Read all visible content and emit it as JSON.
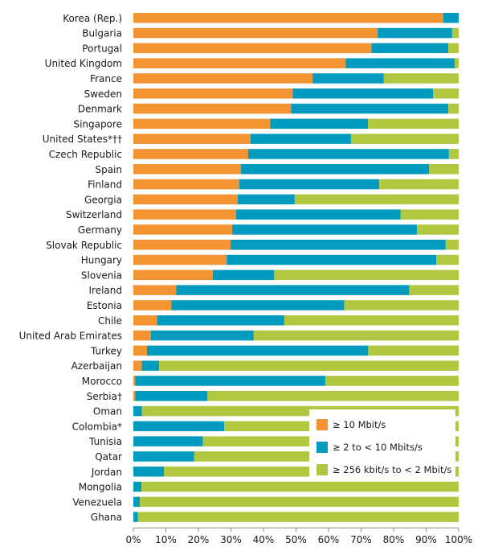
{
  "chart_data": {
    "type": "bar",
    "orientation": "horizontal",
    "stacked": true,
    "title": "",
    "xlabel": "",
    "ylabel": "",
    "xlim": [
      0,
      100
    ],
    "x_tick_labels": [
      "0%",
      "10%",
      "20%",
      "30%",
      "40%",
      "50%",
      "60%",
      "70%",
      "80%",
      "90%",
      "100%"
    ],
    "grid": false,
    "legend_position": "bottom-right (inside plot)",
    "categories": [
      "Korea (Rep.)",
      "Bulgaria",
      "Portugal",
      "United Kingdom",
      "France",
      "Sweden",
      "Denmark",
      "Singapore",
      "United States*††",
      "Czech Republic",
      "Spain",
      "Finland",
      "Georgia",
      "Switzerland",
      "Germany",
      "Slovak Republic",
      "Hungary",
      "Slovenia",
      "Ireland",
      "Estonia",
      "Chile",
      "United Arab Emirates",
      "Turkey",
      "Azerbaijan",
      "Morocco",
      "Serbia†",
      "Oman",
      "Colombia*",
      "Tunisia",
      "Qatar",
      "Jordan",
      "Mongolia",
      "Venezuela",
      "Ghana"
    ],
    "series": [
      {
        "name": "≥ 10 Mbit/s",
        "color": "#f39332",
        "values": [
          95.3,
          75.1,
          73.2,
          65.3,
          55.1,
          49.0,
          48.5,
          42.1,
          36.0,
          35.3,
          33.1,
          32.6,
          32.1,
          31.6,
          30.4,
          29.9,
          28.7,
          24.4,
          13.2,
          11.7,
          7.3,
          5.4,
          4.2,
          2.6,
          0.6,
          0.6,
          0,
          0,
          0,
          0,
          0,
          0,
          0,
          0
        ]
      },
      {
        "name": "≥ 2 to < 10 Mbits/s",
        "color": "#009bbf",
        "values": [
          4.7,
          22.9,
          23.6,
          33.5,
          21.9,
          43.1,
          48.3,
          30.0,
          30.9,
          61.7,
          57.8,
          43.0,
          17.5,
          50.5,
          56.8,
          66.1,
          64.4,
          18.9,
          71.6,
          53.1,
          39.1,
          31.6,
          68.0,
          5.3,
          58.4,
          22.2,
          2.6,
          27.9,
          21.4,
          18.7,
          9.4,
          2.5,
          2.0,
          1.4
        ]
      },
      {
        "name": "≥ 256 kbit/s to < 2 Mbit/s",
        "color": "#afc83f",
        "values": [
          0,
          2.0,
          3.2,
          1.2,
          23.0,
          7.9,
          3.2,
          27.9,
          33.1,
          3.0,
          9.1,
          24.4,
          50.4,
          17.9,
          12.8,
          4.0,
          6.9,
          56.7,
          15.2,
          35.2,
          53.6,
          63.0,
          27.8,
          92.1,
          41.0,
          77.2,
          97.4,
          72.1,
          78.6,
          81.3,
          90.6,
          97.5,
          98.0,
          98.6
        ]
      }
    ]
  }
}
